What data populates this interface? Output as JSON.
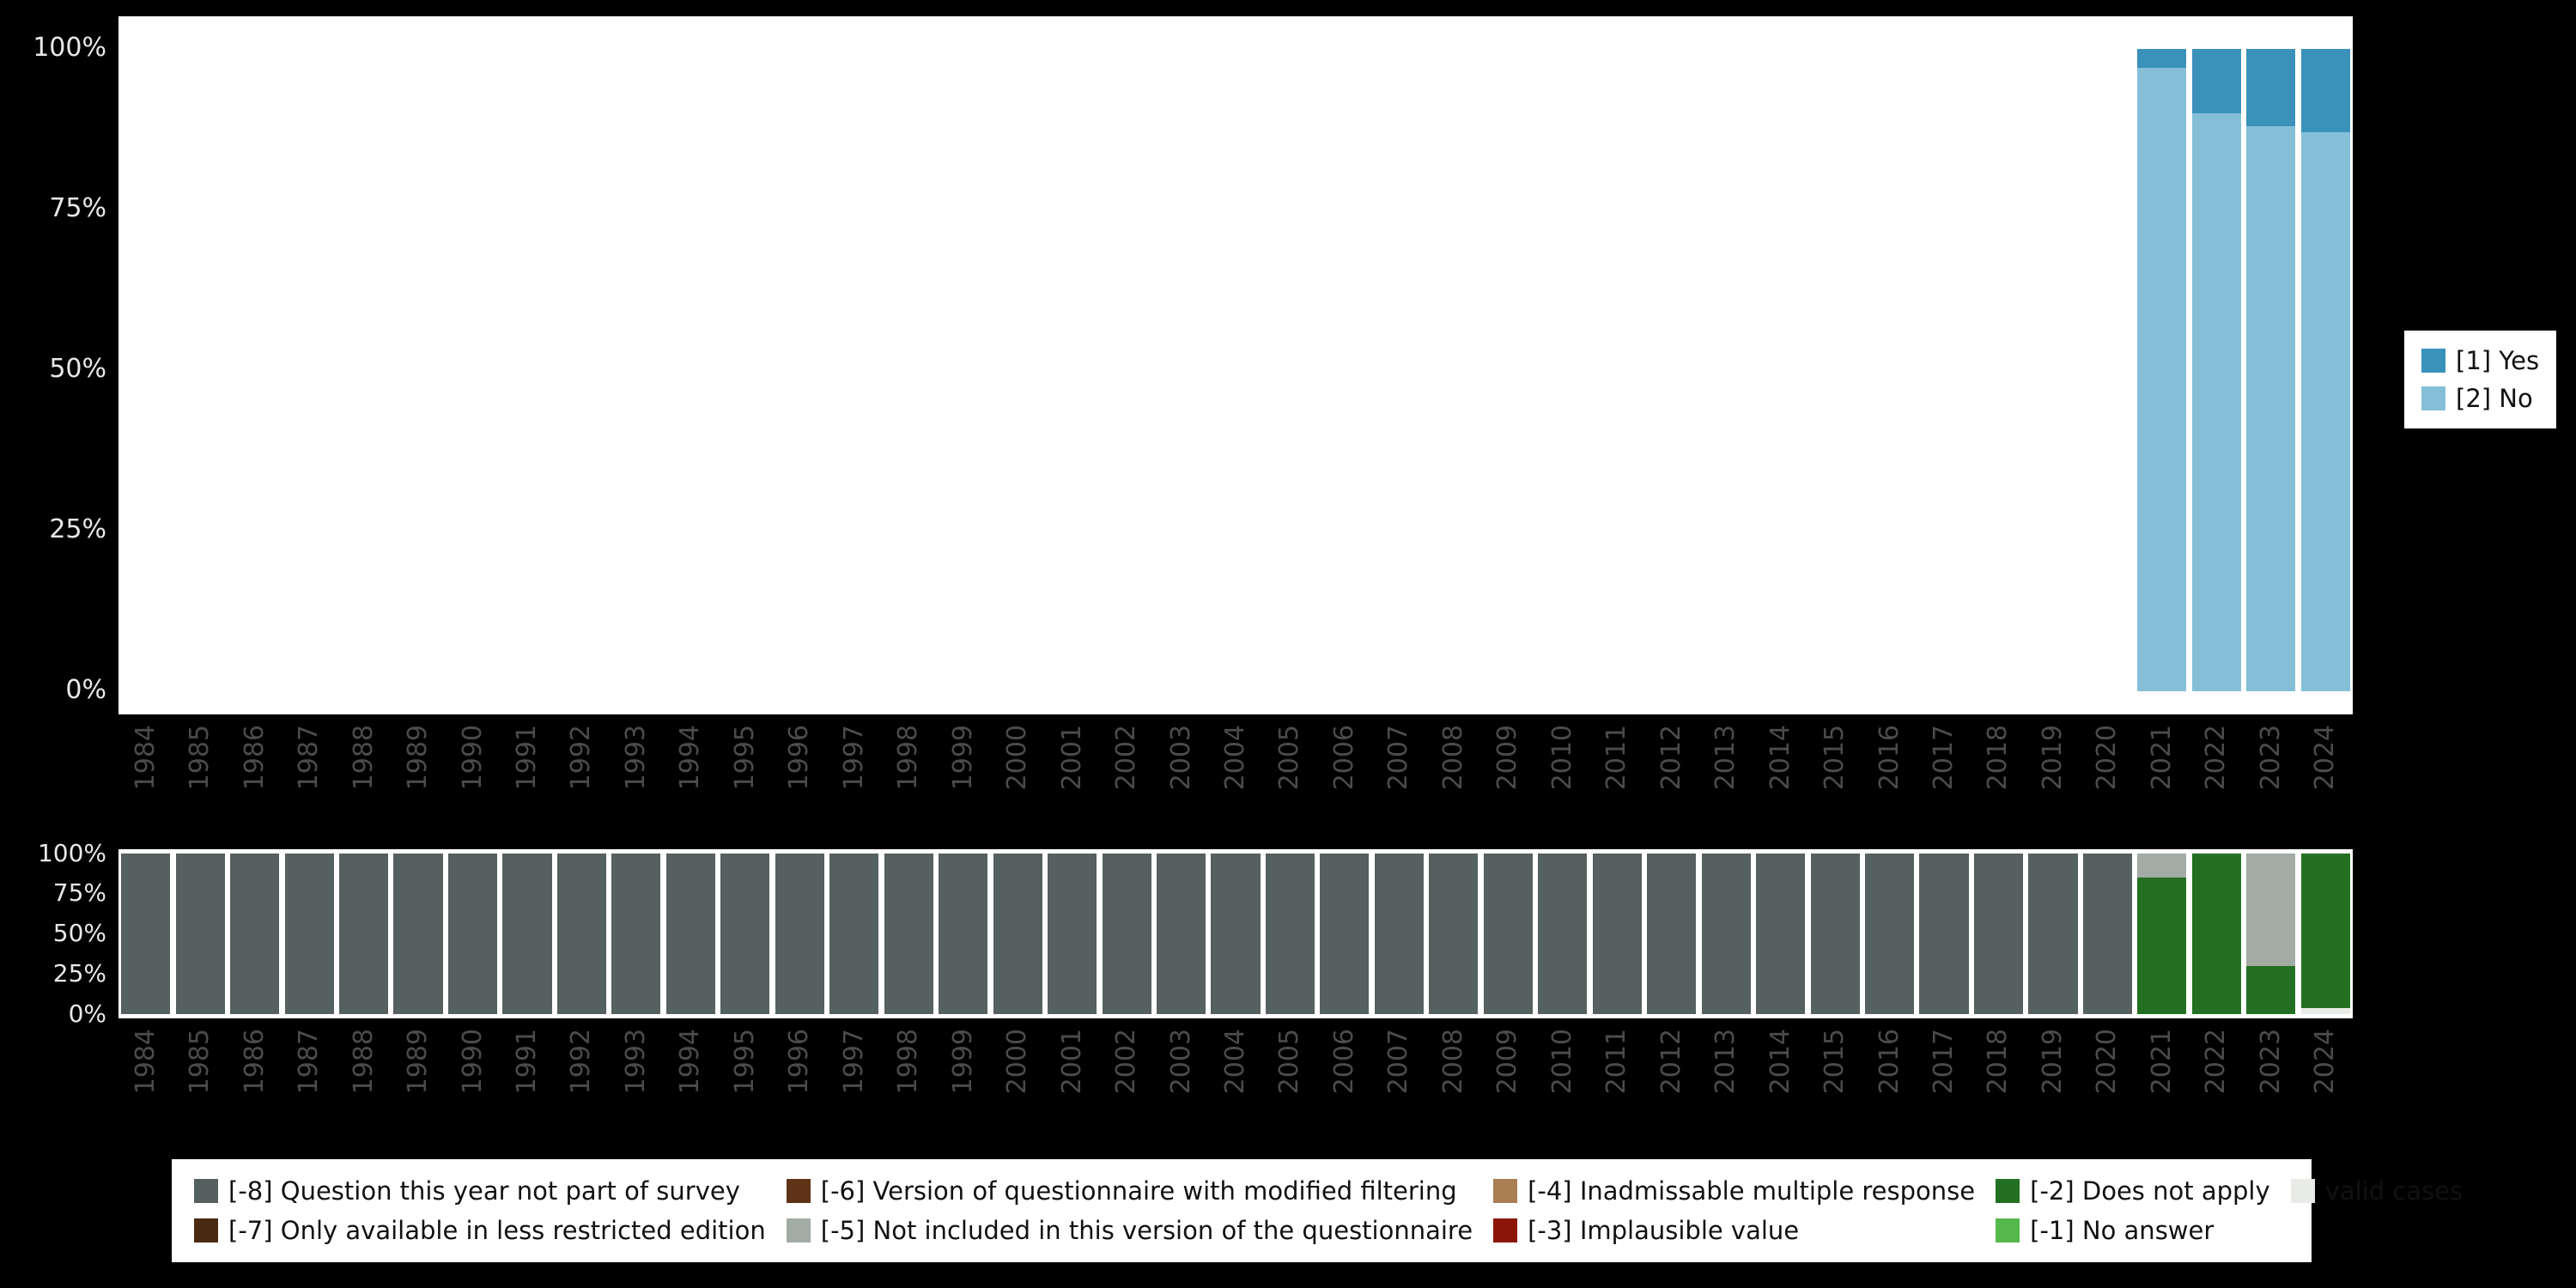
{
  "background_color": "#000000",
  "chart_data": [
    {
      "type": "bar",
      "stacked": true,
      "orientation": "vertical",
      "title": "",
      "xlabel": "",
      "ylabel": "",
      "categories": [
        "1984",
        "1985",
        "1986",
        "1987",
        "1988",
        "1989",
        "1990",
        "1991",
        "1992",
        "1993",
        "1994",
        "1995",
        "1996",
        "1997",
        "1998",
        "1999",
        "2000",
        "2001",
        "2002",
        "2003",
        "2004",
        "2005",
        "2006",
        "2007",
        "2008",
        "2009",
        "2010",
        "2011",
        "2012",
        "2013",
        "2014",
        "2015",
        "2016",
        "2017",
        "2018",
        "2019",
        "2020",
        "2021",
        "2022",
        "2023",
        "2024"
      ],
      "y_ticks": [
        100,
        75,
        50,
        25,
        0
      ],
      "y_tick_suffix": "%",
      "ylim": [
        0,
        100
      ],
      "grid": false,
      "legend_position": "right",
      "stack_order": "bottom_to_top",
      "series": [
        {
          "name": "[2] No",
          "color": "#85bfd7",
          "values": [
            0,
            0,
            0,
            0,
            0,
            0,
            0,
            0,
            0,
            0,
            0,
            0,
            0,
            0,
            0,
            0,
            0,
            0,
            0,
            0,
            0,
            0,
            0,
            0,
            0,
            0,
            0,
            0,
            0,
            0,
            0,
            0,
            0,
            0,
            0,
            0,
            0,
            97,
            90,
            88,
            87
          ]
        },
        {
          "name": "[1] Yes",
          "color": "#3a92ba",
          "values": [
            0,
            0,
            0,
            0,
            0,
            0,
            0,
            0,
            0,
            0,
            0,
            0,
            0,
            0,
            0,
            0,
            0,
            0,
            0,
            0,
            0,
            0,
            0,
            0,
            0,
            0,
            0,
            0,
            0,
            0,
            0,
            0,
            0,
            0,
            0,
            0,
            0,
            3,
            10,
            12,
            13
          ]
        }
      ]
    },
    {
      "type": "bar",
      "stacked": true,
      "orientation": "vertical",
      "title": "",
      "xlabel": "",
      "ylabel": "",
      "categories": [
        "1984",
        "1985",
        "1986",
        "1987",
        "1988",
        "1989",
        "1990",
        "1991",
        "1992",
        "1993",
        "1994",
        "1995",
        "1996",
        "1997",
        "1998",
        "1999",
        "2000",
        "2001",
        "2002",
        "2003",
        "2004",
        "2005",
        "2006",
        "2007",
        "2008",
        "2009",
        "2010",
        "2011",
        "2012",
        "2013",
        "2014",
        "2015",
        "2016",
        "2017",
        "2018",
        "2019",
        "2020",
        "2021",
        "2022",
        "2023",
        "2024"
      ],
      "y_ticks": [
        100,
        75,
        50,
        25,
        0
      ],
      "y_tick_suffix": "%",
      "ylim": [
        0,
        100
      ],
      "grid": false,
      "legend_position": "bottom",
      "stack_order": "bottom_to_top",
      "series": [
        {
          "name": "valid cases",
          "color": "#e9ece6",
          "values": [
            0,
            0,
            0,
            0,
            0,
            0,
            0,
            0,
            0,
            0,
            0,
            0,
            0,
            0,
            0,
            0,
            0,
            0,
            0,
            0,
            0,
            0,
            0,
            0,
            0,
            0,
            0,
            0,
            0,
            0,
            0,
            0,
            0,
            0,
            0,
            0,
            0,
            0,
            0,
            0,
            4
          ]
        },
        {
          "name": "[-2] Does not apply",
          "color": "#247023",
          "values": [
            0,
            0,
            0,
            0,
            0,
            0,
            0,
            0,
            0,
            0,
            0,
            0,
            0,
            0,
            0,
            0,
            0,
            0,
            0,
            0,
            0,
            0,
            0,
            0,
            0,
            0,
            0,
            0,
            0,
            0,
            0,
            0,
            0,
            0,
            0,
            0,
            0,
            85,
            100,
            30,
            96
          ]
        },
        {
          "name": "[-5] Not included in this version of the questionnaire",
          "color": "#a2aba4",
          "values": [
            0,
            0,
            0,
            0,
            0,
            0,
            0,
            0,
            0,
            0,
            0,
            0,
            0,
            0,
            0,
            0,
            0,
            0,
            0,
            0,
            0,
            0,
            0,
            0,
            0,
            0,
            0,
            0,
            0,
            0,
            0,
            0,
            0,
            0,
            0,
            0,
            0,
            15,
            0,
            70,
            0
          ]
        },
        {
          "name": "[-8] Question this year not part of survey",
          "color": "#556060",
          "values": [
            100,
            100,
            100,
            100,
            100,
            100,
            100,
            100,
            100,
            100,
            100,
            100,
            100,
            100,
            100,
            100,
            100,
            100,
            100,
            100,
            100,
            100,
            100,
            100,
            100,
            100,
            100,
            100,
            100,
            100,
            100,
            100,
            100,
            100,
            100,
            100,
            100,
            0,
            0,
            0,
            0
          ]
        }
      ]
    }
  ],
  "top_legend": {
    "items": [
      {
        "label": "[1] Yes",
        "color": "#3a92ba"
      },
      {
        "label": "[2] No",
        "color": "#85bfd7"
      }
    ]
  },
  "bottom_legend": {
    "items": [
      {
        "label": "[-8] Question this year not part of survey",
        "color": "#556060"
      },
      {
        "label": "[-7] Only available in less restricted edition",
        "color": "#4a2a10"
      },
      {
        "label": "[-6] Version of questionnaire with modified filtering",
        "color": "#5e3317"
      },
      {
        "label": "[-5] Not included in this version of the questionnaire",
        "color": "#a2aba4"
      },
      {
        "label": "[-4] Inadmissable multiple response",
        "color": "#a97e52"
      },
      {
        "label": "[-3] Implausible value",
        "color": "#8c1509"
      },
      {
        "label": "[-2] Does not apply",
        "color": "#247023"
      },
      {
        "label": "[-1] No answer",
        "color": "#55b84c"
      },
      {
        "label": "valid cases",
        "color": "#e9ece6"
      }
    ]
  }
}
